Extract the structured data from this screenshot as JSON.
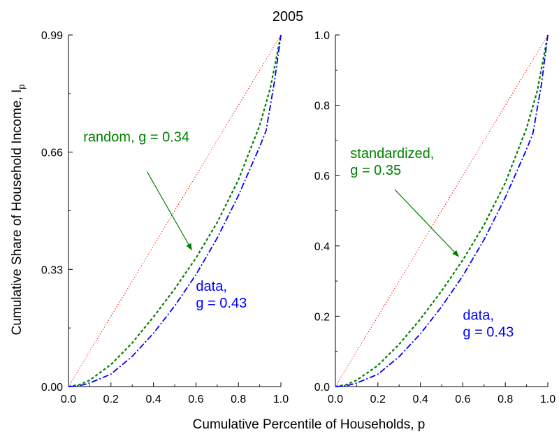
{
  "figure": {
    "title": "2005",
    "shared_xlabel": "Cumulative Percentile of Households, p",
    "shared_ylabel": "Cumulative Share of Household Income, I",
    "shared_ylabel_subscript": "p"
  },
  "chart_data": [
    {
      "type": "line",
      "xlim": [
        0,
        1
      ],
      "ylim": [
        0,
        0.99
      ],
      "x_ticks": [
        0.0,
        0.2,
        0.4,
        0.6,
        0.8,
        1.0
      ],
      "x_tick_labels": [
        "0.0",
        "0.2",
        "0.4",
        "0.6",
        "0.8",
        "1.0"
      ],
      "y_ticks": [
        0.0,
        0.33,
        0.66,
        0.99
      ],
      "y_tick_labels": [
        "0.00",
        "0.33",
        "0.66",
        "0.99"
      ],
      "grid": false,
      "series": [
        {
          "key": "equality",
          "color": "#ff0000",
          "dash": "1.2,2.6",
          "width": 1.1,
          "x": [
            0,
            1
          ],
          "y": [
            0,
            0.99
          ]
        },
        {
          "key": "random",
          "color": "#008000",
          "dash": "4,3",
          "width": 2.2,
          "x": [
            0,
            0.05,
            0.1,
            0.2,
            0.3,
            0.4,
            0.5,
            0.6,
            0.7,
            0.8,
            0.9,
            0.95,
            1.0
          ],
          "y": [
            0,
            0.005,
            0.018,
            0.062,
            0.123,
            0.196,
            0.275,
            0.362,
            0.462,
            0.582,
            0.735,
            0.84,
            0.99
          ]
        },
        {
          "key": "data",
          "color": "#0000ff",
          "dash": "9,3,2,3",
          "width": 1.8,
          "x": [
            0,
            0.05,
            0.1,
            0.2,
            0.3,
            0.4,
            0.5,
            0.6,
            0.7,
            0.8,
            0.9,
            0.93,
            0.97,
            1.0
          ],
          "y": [
            0,
            0.002,
            0.01,
            0.035,
            0.085,
            0.15,
            0.227,
            0.315,
            0.418,
            0.538,
            0.675,
            0.72,
            0.86,
            0.99
          ]
        }
      ],
      "annotations": [
        {
          "lines": [
            "random, g = 0.34"
          ],
          "color": "#008000",
          "x": 0.07,
          "y": 0.69
        },
        {
          "lines": [
            "data,",
            "g = 0.43"
          ],
          "color": "#0000ff",
          "x": 0.6,
          "y": 0.27
        }
      ],
      "arrow": {
        "from": [
          0.37,
          0.605
        ],
        "to": [
          0.58,
          0.385
        ],
        "color": "#008000"
      }
    },
    {
      "type": "line",
      "xlim": [
        0,
        1
      ],
      "ylim": [
        0,
        1.0
      ],
      "x_ticks": [
        0.0,
        0.2,
        0.4,
        0.6,
        0.8,
        1.0
      ],
      "x_tick_labels": [
        "0.0",
        "0.2",
        "0.4",
        "0.6",
        "0.8",
        "1.0"
      ],
      "y_ticks": [
        0.0,
        0.2,
        0.4,
        0.6,
        0.8,
        1.0
      ],
      "y_tick_labels": [
        "0.0",
        "0.2",
        "0.4",
        "0.6",
        "0.8",
        "1.0"
      ],
      "grid": false,
      "series": [
        {
          "key": "equality",
          "color": "#ff0000",
          "dash": "1.2,2.6",
          "width": 1.1,
          "x": [
            0,
            1
          ],
          "y": [
            0,
            1.0
          ]
        },
        {
          "key": "standardized",
          "color": "#008000",
          "dash": "4,3",
          "width": 2.2,
          "x": [
            0,
            0.05,
            0.1,
            0.2,
            0.3,
            0.4,
            0.5,
            0.6,
            0.7,
            0.8,
            0.9,
            0.95,
            1.0
          ],
          "y": [
            0,
            0.005,
            0.018,
            0.06,
            0.12,
            0.192,
            0.272,
            0.36,
            0.46,
            0.58,
            0.735,
            0.84,
            1.0
          ]
        },
        {
          "key": "data",
          "color": "#0000ff",
          "dash": "9,3,2,3",
          "width": 1.8,
          "x": [
            0,
            0.05,
            0.1,
            0.2,
            0.3,
            0.4,
            0.5,
            0.6,
            0.7,
            0.8,
            0.9,
            0.93,
            0.97,
            1.0
          ],
          "y": [
            0,
            0.002,
            0.01,
            0.035,
            0.085,
            0.15,
            0.227,
            0.315,
            0.418,
            0.538,
            0.675,
            0.72,
            0.86,
            1.0
          ]
        }
      ],
      "annotations": [
        {
          "lines": [
            "standardized,",
            "g = 0.35"
          ],
          "color": "#008000",
          "x": 0.07,
          "y": 0.65
        },
        {
          "lines": [
            "data,",
            "g = 0.43"
          ],
          "color": "#0000ff",
          "x": 0.6,
          "y": 0.19
        }
      ],
      "arrow": {
        "from": [
          0.28,
          0.56
        ],
        "to": [
          0.58,
          0.37
        ],
        "color": "#008000"
      }
    }
  ]
}
